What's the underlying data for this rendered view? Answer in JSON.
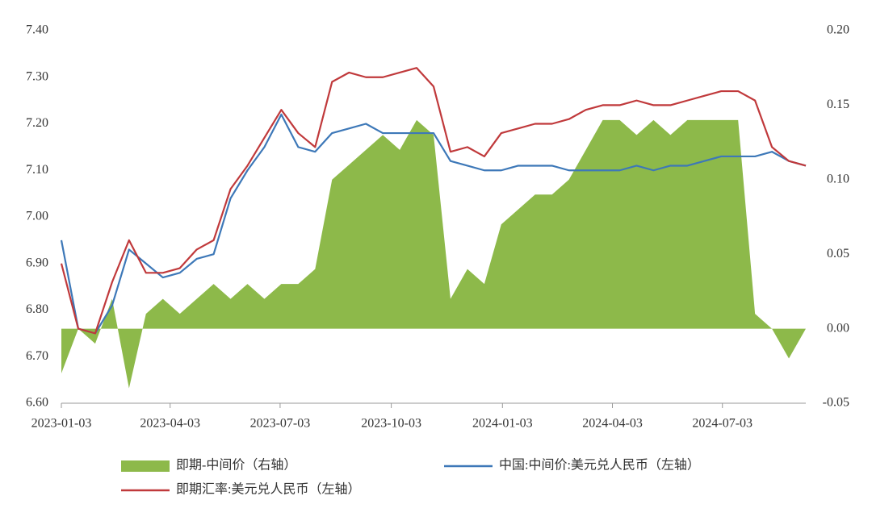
{
  "chart_data": {
    "type": "line",
    "x": [
      "2023-01-03",
      "2023-01-17",
      "2023-01-31",
      "2023-02-14",
      "2023-02-28",
      "2023-03-14",
      "2023-03-28",
      "2023-04-11",
      "2023-04-25",
      "2023-05-09",
      "2023-05-23",
      "2023-06-06",
      "2023-06-20",
      "2023-07-04",
      "2023-07-18",
      "2023-08-01",
      "2023-08-15",
      "2023-08-29",
      "2023-09-12",
      "2023-09-26",
      "2023-10-10",
      "2023-10-24",
      "2023-11-07",
      "2023-11-21",
      "2023-12-05",
      "2023-12-19",
      "2024-01-02",
      "2024-01-16",
      "2024-01-30",
      "2024-02-13",
      "2024-02-27",
      "2024-03-12",
      "2024-03-26",
      "2024-04-09",
      "2024-04-23",
      "2024-05-07",
      "2024-05-21",
      "2024-06-04",
      "2024-06-18",
      "2024-07-02",
      "2024-07-16",
      "2024-07-30",
      "2024-08-13",
      "2024-08-27",
      "2024-09-10"
    ],
    "series": [
      {
        "name": "即期-中间价（右轴）",
        "type": "area",
        "axis": "y2",
        "color": "#8db94a",
        "values": [
          -0.03,
          0.0,
          -0.01,
          0.02,
          -0.04,
          0.01,
          0.02,
          0.01,
          0.02,
          0.03,
          0.02,
          0.03,
          0.02,
          0.03,
          0.03,
          0.04,
          0.1,
          0.11,
          0.12,
          0.13,
          0.12,
          0.14,
          0.13,
          0.02,
          0.04,
          0.03,
          0.07,
          0.08,
          0.09,
          0.09,
          0.1,
          0.12,
          0.14,
          0.14,
          0.13,
          0.14,
          0.13,
          0.14,
          0.14,
          0.14,
          0.14,
          0.01,
          0.0,
          -0.02,
          0.0
        ]
      },
      {
        "name": "中国:中间价:美元兑人民币（左轴）",
        "type": "line",
        "color": "#3d78b8",
        "values": [
          6.95,
          6.76,
          6.75,
          6.81,
          6.93,
          6.9,
          6.87,
          6.88,
          6.91,
          6.92,
          7.04,
          7.1,
          7.15,
          7.22,
          7.15,
          7.14,
          7.18,
          7.19,
          7.2,
          7.18,
          7.18,
          7.18,
          7.18,
          7.12,
          7.11,
          7.1,
          7.1,
          7.11,
          7.11,
          7.11,
          7.1,
          7.1,
          7.1,
          7.1,
          7.11,
          7.1,
          7.11,
          7.11,
          7.12,
          7.13,
          7.13,
          7.13,
          7.14,
          7.12,
          7.11
        ]
      },
      {
        "name": "即期汇率:美元兑人民币（左轴）",
        "type": "line",
        "color": "#c0393b",
        "values": [
          6.9,
          6.76,
          6.75,
          6.86,
          6.95,
          6.88,
          6.88,
          6.89,
          6.93,
          6.95,
          7.06,
          7.11,
          7.17,
          7.23,
          7.18,
          7.15,
          7.29,
          7.31,
          7.3,
          7.3,
          7.31,
          7.32,
          7.28,
          7.14,
          7.15,
          7.13,
          7.18,
          7.19,
          7.2,
          7.2,
          7.21,
          7.23,
          7.24,
          7.24,
          7.25,
          7.24,
          7.24,
          7.25,
          7.26,
          7.27,
          7.27,
          7.25,
          7.15,
          7.12,
          7.11
        ]
      }
    ],
    "xlim": [
      "2023-01-03",
      "2024-09-10"
    ],
    "xticks": [
      "2023-01-03",
      "2023-04-03",
      "2023-07-03",
      "2023-10-03",
      "2024-01-03",
      "2024-04-03",
      "2024-07-03"
    ],
    "ylim": [
      6.6,
      7.4
    ],
    "yticks": [
      {
        "value": 6.6,
        "label": "6.60"
      },
      {
        "value": 6.7,
        "label": "6.70"
      },
      {
        "value": 6.8,
        "label": "6.80"
      },
      {
        "value": 6.9,
        "label": "6.90"
      },
      {
        "value": 7.0,
        "label": "7.00"
      },
      {
        "value": 7.1,
        "label": "7.10"
      },
      {
        "value": 7.2,
        "label": "7.20"
      },
      {
        "value": 7.3,
        "label": "7.30"
      },
      {
        "value": 7.4,
        "label": "7.40"
      }
    ],
    "y2lim": [
      -0.05,
      0.2
    ],
    "y2ticks": [
      -0.05,
      {
        "value": 0.0,
        "label": "0.00"
      },
      0.05,
      {
        "value": 0.1,
        "label": "0.10"
      },
      0.15,
      {
        "value": 0.2,
        "label": "0.20"
      }
    ],
    "legend": "bottom"
  }
}
